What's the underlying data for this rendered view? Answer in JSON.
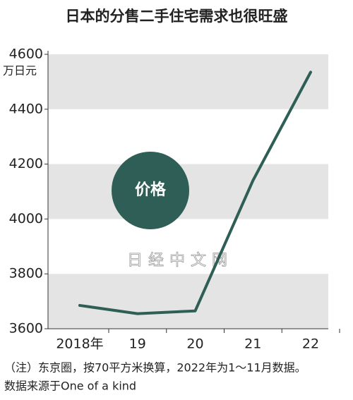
{
  "chart_data": {
    "type": "line",
    "title": "日本的分售二手住宅需求也很旺盛",
    "unit_label": "万日元",
    "watermark": "日经中文网",
    "categories": [
      "2018年",
      "19",
      "20",
      "21",
      "22"
    ],
    "series": [
      {
        "name": "价格",
        "color": "#2e5e55",
        "values": [
          3685,
          3655,
          3665,
          4140,
          4535
        ]
      }
    ],
    "ylim": [
      3600,
      4600
    ],
    "yticks": [
      3600,
      3800,
      4000,
      4200,
      4400,
      4600
    ],
    "bands": true,
    "notes": [
      "（注）东京圈，按70平方米换算，2022年为1～11月数据。",
      "数据来源于One of a kind"
    ]
  }
}
